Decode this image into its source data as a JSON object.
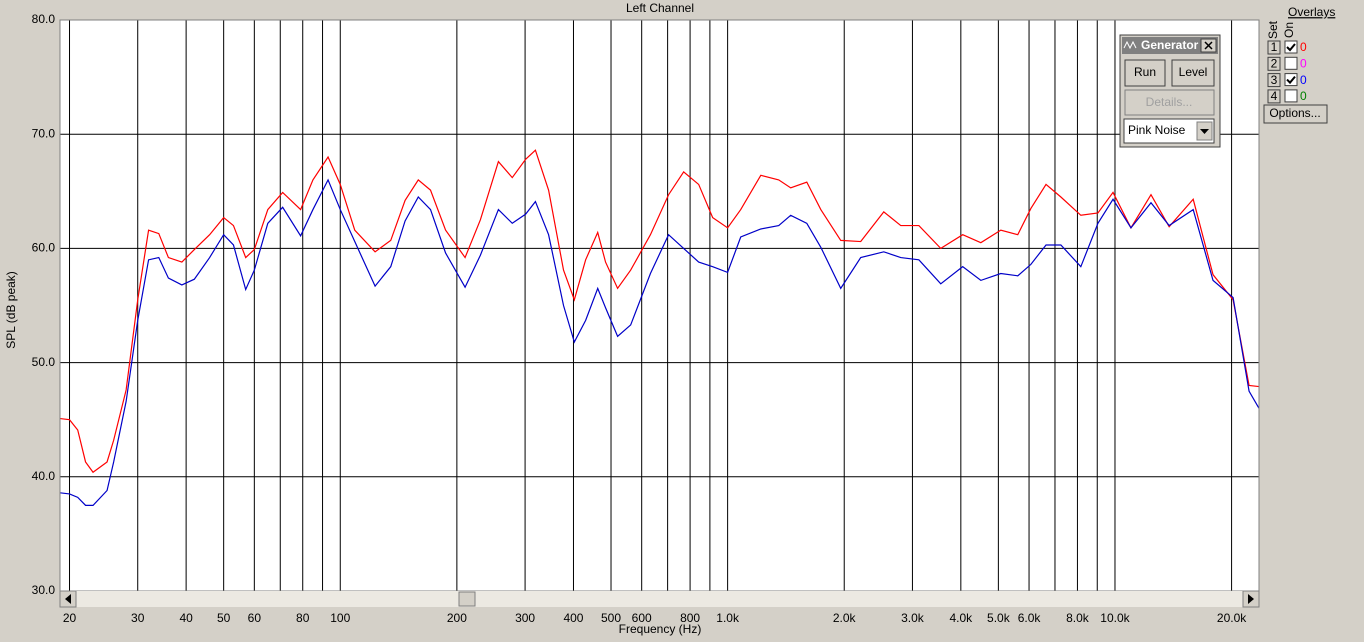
{
  "chart_data": {
    "type": "line",
    "title": "Left Channel",
    "xlabel": "Frequency (Hz)",
    "ylabel": "SPL (dB peak)",
    "xscale": "log",
    "grid": true,
    "xlim": [
      18.9,
      23540
    ],
    "ylim": [
      30,
      80
    ],
    "xticks": [
      20,
      30,
      40,
      50,
      60,
      80,
      100,
      200,
      300,
      400,
      500,
      600,
      800,
      {
        "value": 1000,
        "label": "1.0k"
      },
      {
        "value": 2000,
        "label": "2.0k"
      },
      {
        "value": 3000,
        "label": "3.0k"
      },
      {
        "value": 4000,
        "label": "4.0k"
      },
      {
        "value": 5000,
        "label": "5.0k"
      },
      {
        "value": 6000,
        "label": "6.0k"
      },
      {
        "value": 8000,
        "label": "8.0k"
      },
      {
        "value": 10000,
        "label": "10.0k"
      },
      {
        "value": 20000,
        "label": "20.0k"
      }
    ],
    "xminor": [
      70,
      90,
      700,
      900,
      7000,
      9000
    ],
    "yticks": [
      {
        "value": 30,
        "label": "30.0"
      },
      {
        "value": 40,
        "label": "40.0"
      },
      {
        "value": 50,
        "label": "50.0"
      },
      {
        "value": 60,
        "label": "60.0"
      },
      {
        "value": 70,
        "label": "70.0"
      },
      {
        "value": 80,
        "label": "80.0"
      }
    ],
    "x": [
      18.9,
      20,
      21,
      22,
      23,
      25,
      26,
      28,
      30,
      32,
      34,
      36,
      39,
      42,
      46,
      50,
      53,
      57,
      60,
      65,
      71,
      79,
      85,
      93,
      100,
      109,
      123,
      135,
      147,
      159,
      171,
      187,
      210,
      230,
      256,
      278,
      301,
      319,
      345,
      377,
      402,
      430,
      462,
      484,
      520,
      562,
      632,
      704,
      770,
      842,
      915,
      1000,
      1081,
      1218,
      1355,
      1455,
      1601,
      1740,
      1959,
      2206,
      2530,
      2799,
      3117,
      3550,
      4045,
      4505,
      5073,
      5611,
      6066,
      6637,
      7250,
      8163,
      9036,
      9885,
      10996,
      12387,
      13800,
      15920,
      17910,
      20180,
      22190,
      23540
    ],
    "series": [
      {
        "color": "#ff0000",
        "values": [
          45.1,
          45.0,
          44.1,
          41.3,
          40.4,
          41.3,
          43.2,
          47.6,
          55.5,
          61.6,
          61.3,
          59.2,
          58.8,
          59.9,
          61.2,
          62.7,
          62.0,
          59.2,
          59.9,
          63.4,
          64.9,
          63.4,
          66.0,
          68.0,
          65.6,
          61.6,
          59.7,
          60.7,
          64.2,
          66.0,
          65.1,
          61.6,
          59.2,
          62.5,
          67.6,
          66.2,
          67.8,
          68.6,
          65.1,
          58.1,
          55.5,
          59.0,
          61.4,
          58.8,
          56.5,
          58.1,
          61.2,
          64.7,
          66.7,
          65.6,
          62.7,
          61.8,
          63.4,
          66.4,
          66.0,
          65.3,
          65.8,
          63.4,
          60.7,
          60.6,
          63.2,
          62.0,
          62.0,
          60.0,
          61.2,
          60.5,
          61.6,
          61.2,
          63.5,
          65.6,
          64.5,
          62.9,
          63.1,
          64.9,
          61.8,
          64.7,
          61.9,
          64.3,
          57.7,
          55.5,
          48.0,
          47.9
        ]
      },
      {
        "color": "#0000c8",
        "values": [
          38.6,
          38.5,
          38.2,
          37.5,
          37.5,
          38.8,
          41.3,
          46.6,
          53.7,
          59.0,
          59.2,
          57.4,
          56.8,
          57.3,
          59.2,
          61.2,
          60.3,
          56.4,
          58.1,
          62.2,
          63.6,
          61.1,
          63.4,
          66.0,
          63.4,
          60.6,
          56.7,
          58.4,
          62.4,
          64.5,
          63.4,
          59.6,
          56.6,
          59.4,
          63.4,
          62.2,
          63.0,
          64.1,
          61.2,
          55.0,
          51.8,
          53.7,
          56.5,
          54.8,
          52.3,
          53.3,
          57.8,
          61.2,
          60.0,
          58.8,
          58.4,
          57.9,
          61.0,
          61.7,
          62.0,
          62.9,
          62.2,
          60.1,
          56.5,
          59.2,
          59.7,
          59.2,
          59.0,
          56.9,
          58.4,
          57.2,
          57.8,
          57.6,
          58.6,
          60.3,
          60.3,
          58.4,
          62.2,
          64.3,
          61.8,
          64.0,
          62.0,
          63.4,
          57.2,
          55.7,
          47.5,
          46.0
        ]
      }
    ]
  },
  "generator": {
    "title": "Generator",
    "run": "Run",
    "level": "Level",
    "details": "Details...",
    "signal": "Pink Noise"
  },
  "overlays": {
    "title": "Overlays",
    "set_label": "Set",
    "on_label": "On",
    "options": "Options...",
    "rows": [
      {
        "set": 1,
        "on": true,
        "value": 0,
        "color": "#ff0000"
      },
      {
        "set": 2,
        "on": false,
        "value": 0,
        "color": "#ff00ff"
      },
      {
        "set": 3,
        "on": true,
        "value": 0,
        "color": "#0000ff"
      },
      {
        "set": 4,
        "on": false,
        "value": 0,
        "color": "#008000"
      }
    ]
  }
}
